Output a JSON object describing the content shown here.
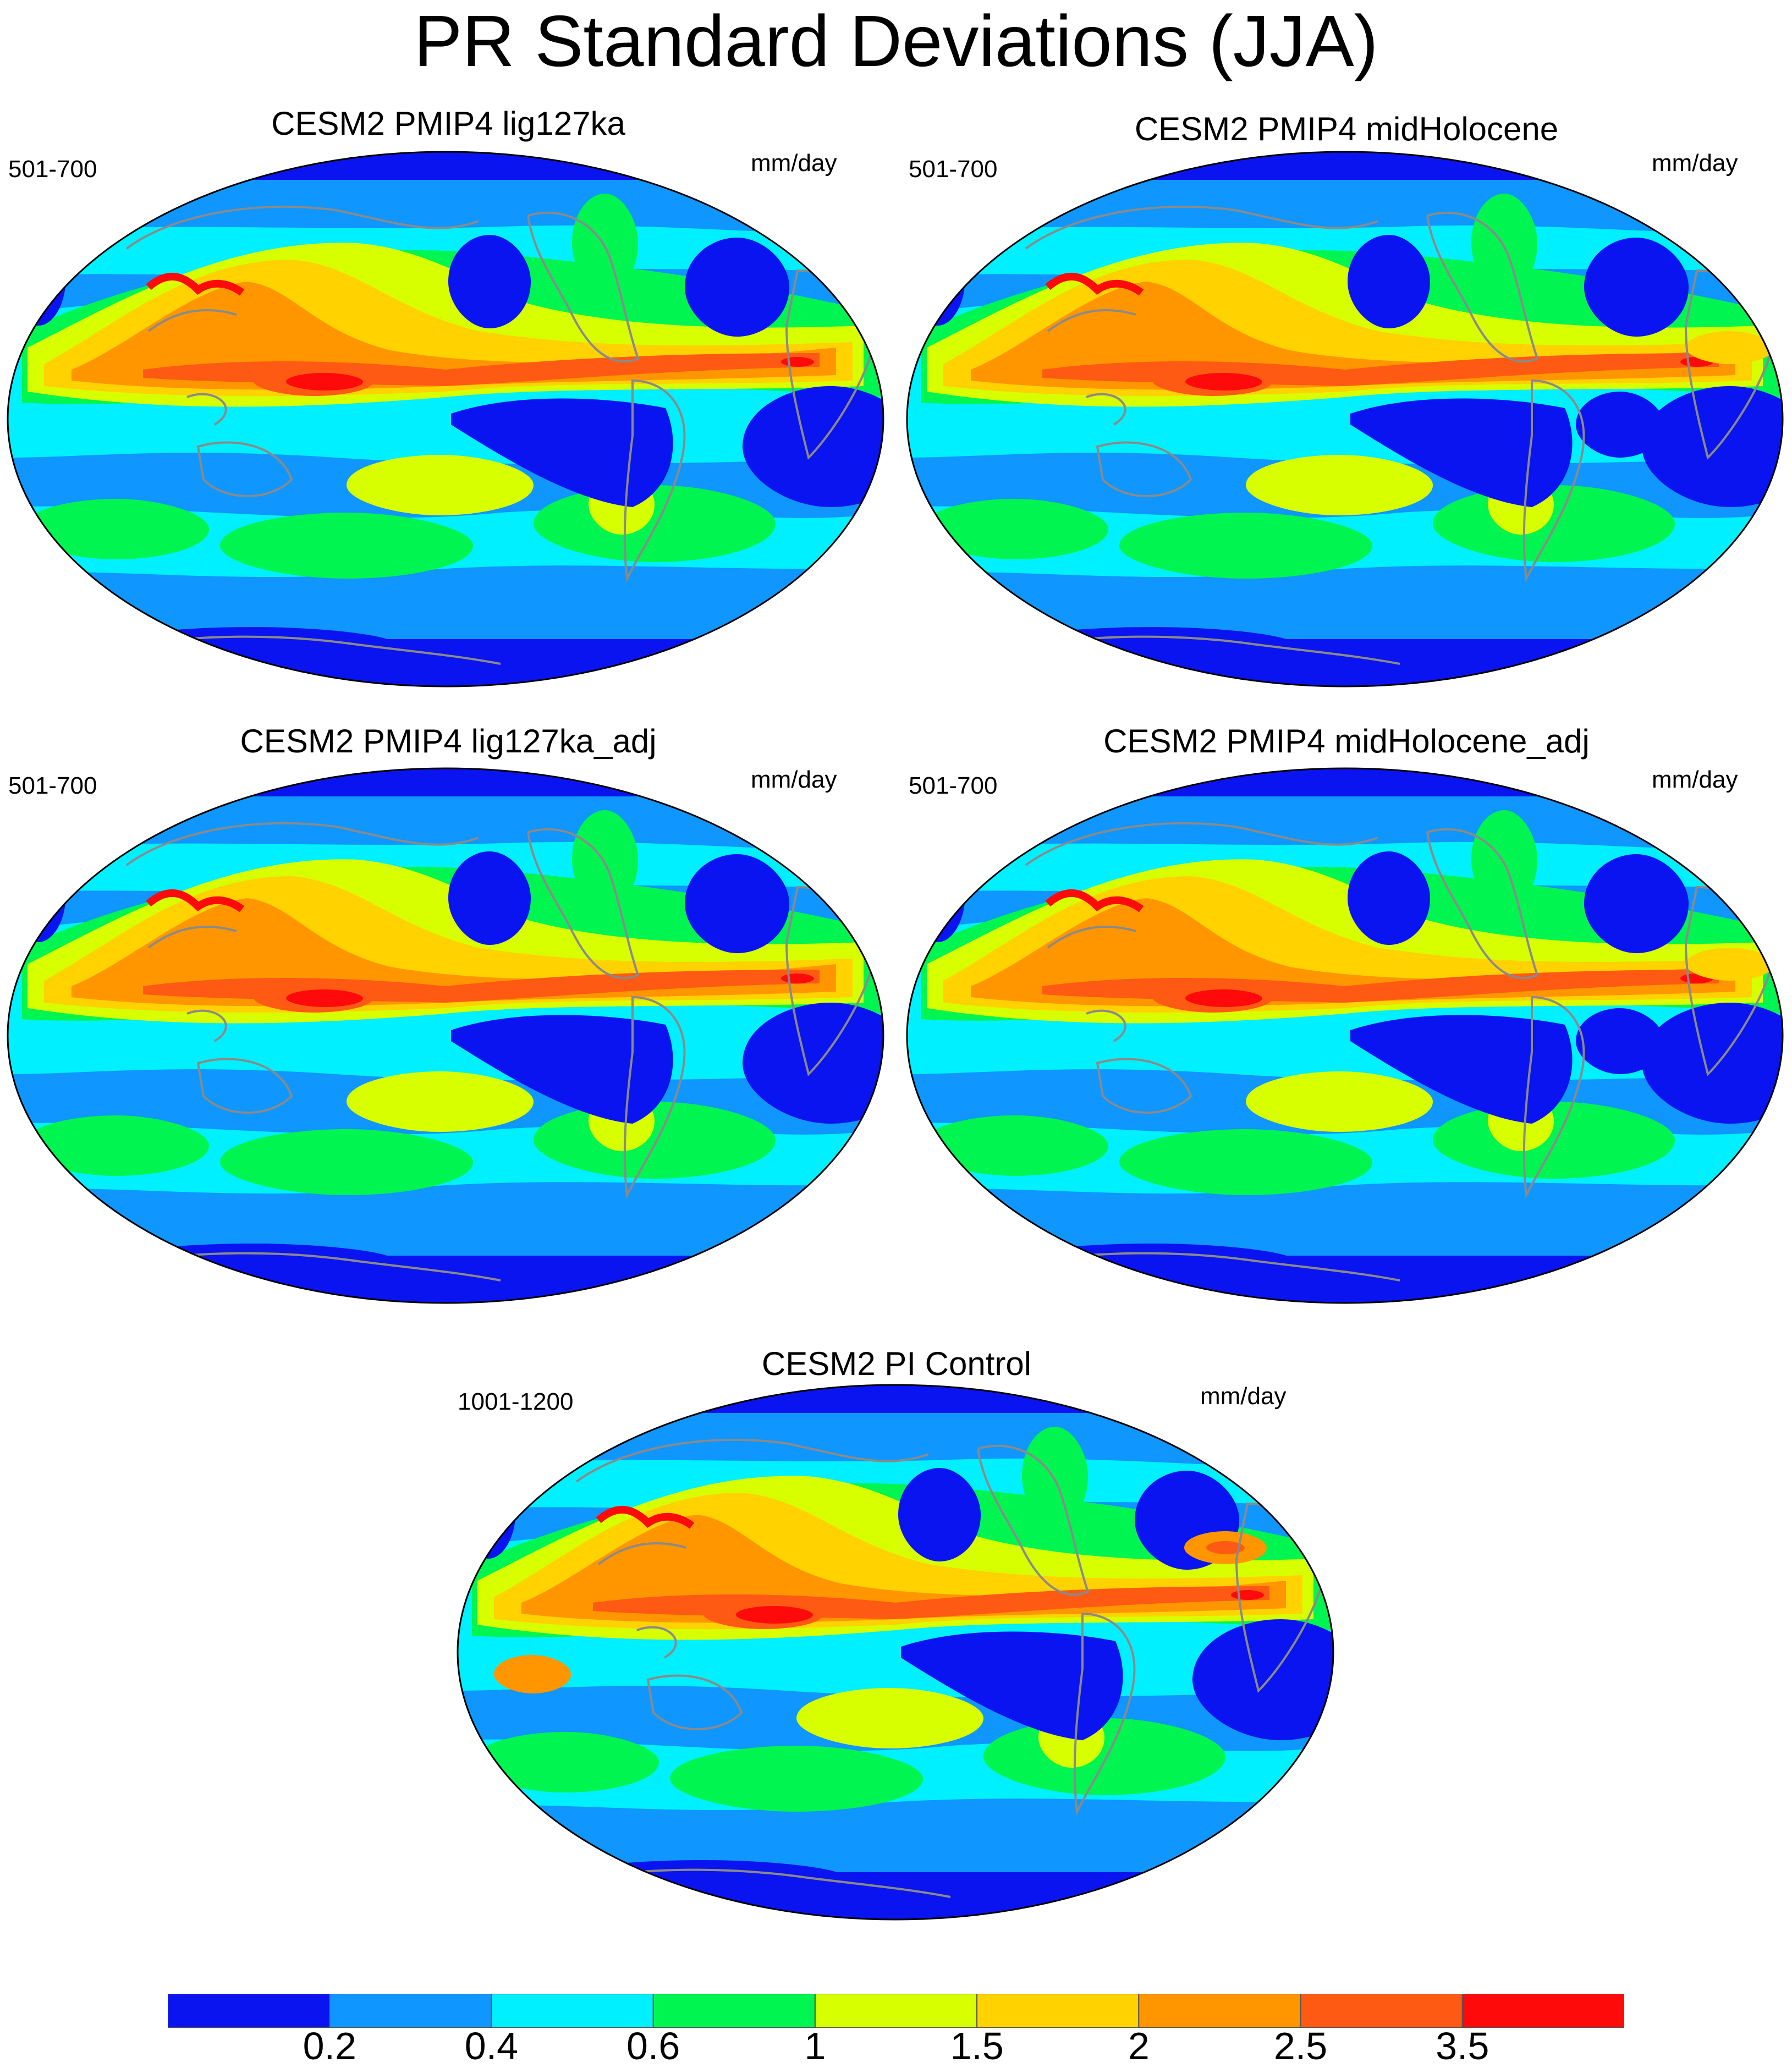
{
  "title": "PR Standard Deviations (JJA)",
  "panels": [
    {
      "title": "CESM2 PMIP4 lig127ka",
      "years": "501-700",
      "units": "mm/day"
    },
    {
      "title": "CESM2 PMIP4 midHolocene",
      "years": "501-700",
      "units": "mm/day"
    },
    {
      "title": "CESM2 PMIP4 lig127ka_adj",
      "years": "501-700",
      "units": "mm/day"
    },
    {
      "title": "CESM2 PMIP4 midHolocene_adj",
      "years": "501-700",
      "units": "mm/day"
    },
    {
      "title": "CESM2 PI Control",
      "years": "1001-1200",
      "units": "mm/day"
    }
  ],
  "colorbar": {
    "colors": [
      "#0a14f0",
      "#0f96ff",
      "#00f0ff",
      "#00f550",
      "#d7ff00",
      "#ffd200",
      "#ff9600",
      "#ff5a14",
      "#ff0a0a"
    ],
    "labels": [
      "0.2",
      "0.4",
      "0.6",
      "1",
      "1.5",
      "2",
      "2.5",
      "3.5"
    ]
  }
}
